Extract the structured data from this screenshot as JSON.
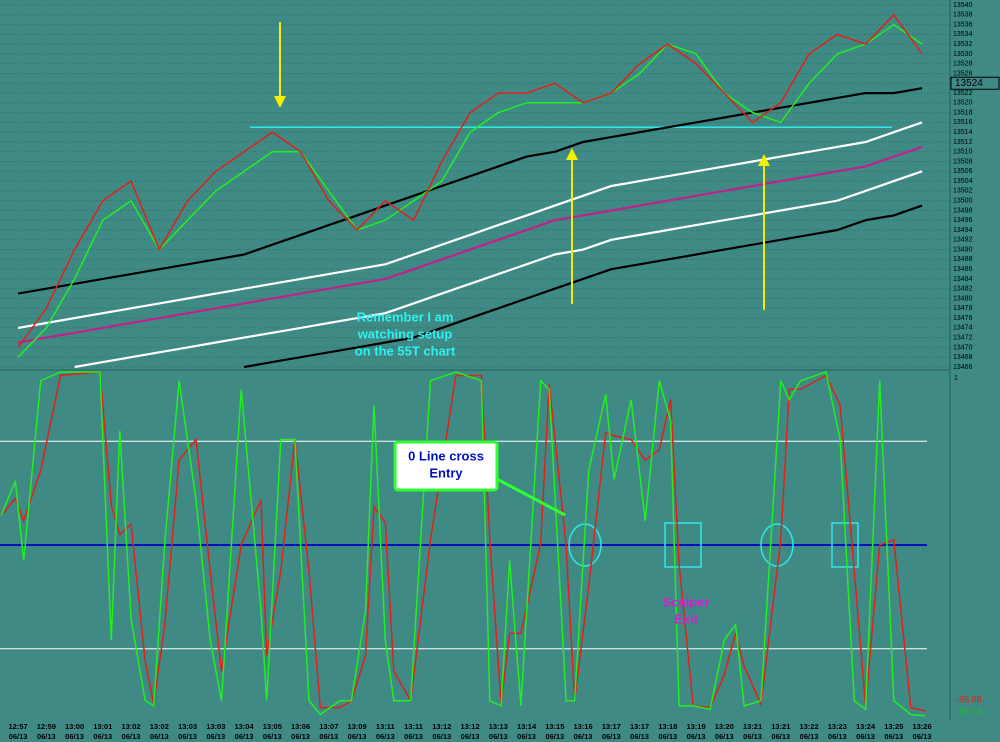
{
  "chart_data": [
    {
      "type": "line",
      "categories": [
        "12:57",
        "12:59",
        "13:00",
        "13:01",
        "13:02",
        "13:02",
        "13:03",
        "13:03",
        "13:04",
        "13:05",
        "13:06",
        "13:07",
        "13:09",
        "13:11",
        "13:11",
        "13:12",
        "13:12",
        "13:13",
        "13:14",
        "13:15",
        "13:16",
        "13:17",
        "13:17",
        "13:18",
        "13:19",
        "13:20",
        "13:21",
        "13:21",
        "13:22",
        "13:23",
        "13:24",
        "13:25",
        "13:26"
      ],
      "date_label": "06/13",
      "xlim": [
        -0.64,
        32.6
      ],
      "ylim": [
        13466,
        13540
      ],
      "yticks": [
        13466,
        13468,
        13470,
        13472,
        13474,
        13476,
        13478,
        13480,
        13482,
        13484,
        13486,
        13488,
        13490,
        13492,
        13494,
        13496,
        13498,
        13500,
        13502,
        13504,
        13506,
        13508,
        13510,
        13512,
        13514,
        13516,
        13518,
        13520,
        13522,
        13524,
        13526,
        13528,
        13530,
        13532,
        13534,
        13536,
        13538,
        13540
      ],
      "grid": true,
      "last_price": 13524,
      "level": 13515,
      "series": [
        {
          "color": "#000000",
          "values": [
            13481,
            13482,
            13483,
            13484,
            13485,
            13486,
            13487,
            13488,
            13489,
            13491,
            13493,
            13495,
            13497,
            13499,
            13501,
            13503,
            13505,
            13507,
            13509,
            13510,
            13512,
            13513,
            13514,
            13515,
            13516,
            13517,
            13518,
            13519,
            13520,
            13521,
            13522,
            13522,
            13523
          ]
        },
        {
          "color": "#ffffff",
          "values": [
            13474,
            13475,
            13476,
            13477,
            13478,
            13479,
            13480,
            13481,
            13482,
            13483,
            13484,
            13485,
            13486,
            13487,
            13489,
            13491,
            13493,
            13495,
            13497,
            13499,
            13501,
            13503,
            13504,
            13505,
            13506,
            13507,
            13508,
            13509,
            13510,
            13511,
            13512,
            13514,
            13516
          ]
        },
        {
          "color": "#c0208a",
          "values": [
            13471,
            13472,
            13473,
            13474,
            13475,
            13476,
            13477,
            13478,
            13479,
            13480,
            13481,
            13482,
            13483,
            13484,
            13486,
            13488,
            13490,
            13492,
            13494,
            13496,
            13497,
            13498,
            13499,
            13500,
            13501,
            13502,
            13503,
            13504,
            13505,
            13506,
            13507,
            13509,
            13511
          ]
        },
        {
          "color": "#ffffff",
          "values": [
            null,
            null,
            13466,
            13467,
            13468,
            13469,
            13470,
            13471,
            13472,
            13473,
            13474,
            13475,
            13476,
            13477,
            13479,
            13481,
            13483,
            13485,
            13487,
            13489,
            13490,
            13492,
            13493,
            13494,
            13495,
            13496,
            13497,
            13498,
            13499,
            13500,
            13502,
            13504,
            13506
          ]
        },
        {
          "color": "#000000",
          "values": [
            null,
            null,
            null,
            null,
            null,
            null,
            null,
            null,
            13466,
            13467,
            13468,
            13469,
            13470,
            13471,
            13472,
            13474,
            13476,
            13478,
            13480,
            13482,
            13484,
            13486,
            13487,
            13488,
            13489,
            13490,
            13491,
            13492,
            13493,
            13494,
            13496,
            13497,
            13499
          ]
        },
        {
          "color": "#22ee22",
          "values": [
            13468,
            13474,
            13484,
            13496,
            13500,
            13490,
            13496,
            13502,
            13506,
            13510,
            13510,
            13502,
            13494,
            13496,
            13500,
            13504,
            13514,
            13518,
            13520,
            13520,
            13520,
            13522,
            13526,
            13532,
            13530,
            13522,
            13518,
            13516,
            13524,
            13530,
            13532,
            13536,
            13532
          ]
        },
        {
          "color": "#e0201a",
          "values": [
            13470,
            13478,
            13490,
            13500,
            13504,
            13490,
            13500,
            13506,
            13510,
            13514,
            13510,
            13500,
            13494,
            13500,
            13496,
            13508,
            13518,
            13522,
            13522,
            13524,
            13520,
            13522,
            13528,
            13532,
            13528,
            13522,
            13516,
            13520,
            13530,
            13534,
            13532,
            13538,
            13530
          ]
        }
      ],
      "annotation": [
        "Remember I am",
        "watching setup",
        "on the 55T chart"
      ]
    },
    {
      "type": "line",
      "xlim": [
        -0.64,
        32.6
      ],
      "ylim": [
        -100,
        100
      ],
      "corner_label": "1",
      "levels": [
        {
          "value": 60,
          "color": "#ffffff"
        },
        {
          "value": 0,
          "color": "#0010c0"
        },
        {
          "value": -60,
          "color": "#ffffff"
        }
      ],
      "x": [
        -0.6,
        -0.1,
        0.2,
        0.8,
        1.5,
        2.9,
        3.3,
        3.6,
        4.0,
        4.5,
        4.8,
        5.2,
        5.7,
        6.3,
        6.8,
        7.2,
        7.9,
        8.6,
        8.8,
        9.3,
        9.8,
        10.3,
        10.7,
        11.4,
        11.8,
        12.3,
        12.6,
        13.0,
        13.3,
        13.9,
        14.6,
        15.5,
        16.4,
        16.7,
        17.1,
        17.4,
        17.8,
        18.5,
        18.8,
        19.4,
        19.7,
        20.2,
        20.8,
        21.1,
        21.7,
        22.2,
        22.7,
        23.1,
        23.4,
        23.9,
        24.5,
        25.0,
        25.4,
        25.7,
        26.3,
        27.0,
        27.3,
        27.7,
        28.6,
        29.1,
        29.6,
        30.0,
        30.5,
        31.0,
        31.6,
        32.1
      ],
      "series": [
        {
          "color": "#e0201a",
          "values": [
            17,
            27,
            14,
            43,
            98,
            100,
            23,
            6,
            12,
            -67,
            -92,
            -45,
            49,
            61,
            -15,
            -73,
            0,
            26,
            -64,
            -15,
            61,
            -15,
            -94,
            -94,
            -90,
            -64,
            22,
            13,
            -73,
            -90,
            3,
            98,
            98,
            3,
            -92,
            -51,
            -51,
            1,
            93,
            0,
            -90,
            -24,
            65,
            63,
            61,
            49,
            55,
            84,
            -11,
            -93,
            -94,
            -75,
            -51,
            -70,
            -92,
            3,
            90,
            90,
            98,
            81,
            -15,
            -93,
            0,
            3,
            -94,
            -95.88
          ]
        },
        {
          "color": "#22ee22",
          "values": [
            17,
            37,
            -9,
            95,
            100,
            100,
            -55,
            66,
            -43,
            -90,
            -93,
            3,
            95,
            26,
            -55,
            -90,
            90,
            -38,
            -90,
            61,
            61,
            -90,
            -98,
            -90,
            -90,
            -38,
            81,
            -55,
            -90,
            -90,
            95,
            100,
            95,
            -90,
            -93,
            -9,
            -93,
            95,
            90,
            -90,
            -90,
            43,
            87,
            38,
            84,
            14,
            95,
            72,
            -93,
            -93,
            -95,
            -55,
            -46,
            -93,
            -90,
            95,
            84,
            95,
            100,
            61,
            -90,
            -95,
            95,
            -90,
            -98,
            -98.74
          ]
        }
      ],
      "callout": [
        "0 Line cross",
        "Entry"
      ],
      "exit_note": [
        "Scalper",
        "Exit"
      ]
    }
  ]
}
